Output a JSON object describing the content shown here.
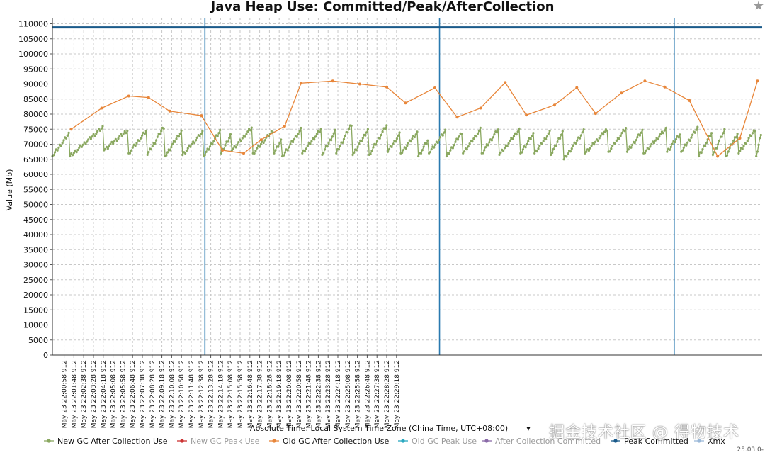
{
  "chart_data": {
    "type": "line",
    "title": "Java Heap Use: Committed/Peak/AfterCollection",
    "xlabel": "Absolute Time: Local System Time Zone (China Time, UTC+08:00)",
    "ylabel": "Value (Mb)",
    "ylim": [
      0,
      112000
    ],
    "y_ticks": [
      0,
      5000,
      10000,
      15000,
      20000,
      25000,
      30000,
      35000,
      40000,
      45000,
      50000,
      55000,
      60000,
      65000,
      70000,
      75000,
      80000,
      85000,
      90000,
      95000,
      100000,
      105000,
      110000
    ],
    "x_range_minutes": [
      0,
      60.5
    ],
    "x_ticks": [
      "May 23 22:00:58.912",
      "May 23 22:01:48.912",
      "May 23 22:02:38.912",
      "May 23 22:03:28.912",
      "May 23 22:04:18.912",
      "May 23 22:05:08.912",
      "May 23 22:05:58.912",
      "May 23 22:06:48.912",
      "May 23 22:07:38.912",
      "May 23 22:08:28.912",
      "May 23 22:09:18.912",
      "May 23 22:10:08.912",
      "May 23 22:10:58.912",
      "May 23 22:11:48.912",
      "May 23 22:12:38.912",
      "May 23 22:13:28.912",
      "May 23 22:14:18.912",
      "May 23 22:15:08.912",
      "May 23 22:15:58.912",
      "May 23 22:16:48.912",
      "May 23 22:17:38.912",
      "May 23 22:18:28.912",
      "May 23 22:19:18.912",
      "May 23 22:20:08.912",
      "May 23 22:20:58.912",
      "May 23 22:21:48.912",
      "May 23 22:22:38.912",
      "May 23 22:23:28.912",
      "May 23 22:24:18.912",
      "May 23 22:25:08.912",
      "May 23 22:25:58.912",
      "May 23 22:26:48.912",
      "May 23 22:27:38.912",
      "May 23 22:28:28.912",
      "May 23 22:29:18.912"
    ],
    "grid": true,
    "legend_position": "bottom",
    "vertical_markers_minutes": [
      13.0,
      33.0,
      53.0
    ],
    "series": [
      {
        "name": "New GC After Collection Use",
        "color": "#8aa860",
        "marker": "dot",
        "cycles": [
          [
            0.0,
            66000,
            74000
          ],
          [
            1.5,
            66000,
            76000
          ],
          [
            4.4,
            68000,
            75000
          ],
          [
            6.5,
            67000,
            75000
          ],
          [
            8.1,
            66500,
            76500
          ],
          [
            9.6,
            66000,
            75000
          ],
          [
            11.1,
            66500,
            74500
          ],
          [
            12.9,
            66000,
            75000
          ],
          [
            14.4,
            67000,
            74000
          ],
          [
            15.3,
            68000,
            76000
          ],
          [
            17.1,
            67000,
            75000
          ],
          [
            18.9,
            67000,
            72000
          ],
          [
            19.6,
            66000,
            75500
          ],
          [
            21.3,
            67000,
            75500
          ],
          [
            23.0,
            66500,
            75000
          ],
          [
            24.2,
            67000,
            77500
          ],
          [
            25.6,
            66500,
            75500
          ],
          [
            27.0,
            66500,
            77000
          ],
          [
            28.6,
            67500,
            74000
          ],
          [
            29.7,
            67000,
            74500
          ],
          [
            31.2,
            66000,
            72000
          ],
          [
            32.1,
            67000,
            75000
          ],
          [
            33.6,
            66000,
            74500
          ],
          [
            35.0,
            67000,
            75500
          ],
          [
            36.6,
            67000,
            75500
          ],
          [
            38.1,
            66500,
            75500
          ],
          [
            39.9,
            67000,
            74000
          ],
          [
            41.1,
            67000,
            74500
          ],
          [
            42.5,
            66500,
            75000
          ],
          [
            43.6,
            65000,
            75000
          ],
          [
            45.4,
            67000,
            75500
          ],
          [
            47.4,
            67500,
            76000
          ],
          [
            49.0,
            67500,
            75000
          ],
          [
            50.4,
            67000,
            75500
          ],
          [
            52.4,
            67500,
            74000
          ],
          [
            53.6,
            67500,
            76000
          ],
          [
            55.1,
            66000,
            74500
          ],
          [
            56.3,
            66500,
            75500
          ],
          [
            57.4,
            66000,
            74500
          ],
          [
            58.5,
            67000,
            75500
          ],
          [
            60.0,
            66000,
            75500
          ]
        ]
      },
      {
        "name": "New GC Peak Use",
        "color": "#cc3333",
        "marker": "dot",
        "points": []
      },
      {
        "name": "Old GC After Collection Use",
        "color": "#e8863a",
        "marker": "dot",
        "points": [
          [
            1.6,
            75000
          ],
          [
            4.2,
            82000
          ],
          [
            6.5,
            86000
          ],
          [
            8.2,
            85500
          ],
          [
            10.0,
            81000
          ],
          [
            12.7,
            79500
          ],
          [
            14.5,
            68000
          ],
          [
            16.3,
            67000
          ],
          [
            17.8,
            71500
          ],
          [
            19.8,
            76000
          ],
          [
            21.2,
            90300
          ],
          [
            23.9,
            91000
          ],
          [
            26.2,
            90000
          ],
          [
            28.5,
            89000
          ],
          [
            30.1,
            83700
          ],
          [
            32.6,
            88700
          ],
          [
            34.5,
            79000
          ],
          [
            36.5,
            82000
          ],
          [
            38.6,
            90500
          ],
          [
            40.4,
            79700
          ],
          [
            42.8,
            83000
          ],
          [
            44.7,
            88800
          ],
          [
            46.3,
            80200
          ],
          [
            48.5,
            87000
          ],
          [
            50.5,
            91000
          ],
          [
            52.2,
            89000
          ],
          [
            54.3,
            84500
          ],
          [
            56.7,
            66000
          ],
          [
            58.6,
            72000
          ],
          [
            60.1,
            91000
          ]
        ]
      },
      {
        "name": "Old GC Peak Use",
        "color": "#2aa8c0",
        "marker": "dot",
        "points": []
      },
      {
        "name": "After Collection Committed",
        "color": "#8a6aa8",
        "marker": "dot",
        "points": []
      },
      {
        "name": "Peak Committed",
        "color": "#1a5a8a",
        "marker": "dot",
        "constant_y": 108800
      },
      {
        "name": "Xmx",
        "color": "#9ab8d8",
        "marker": "dot",
        "points": []
      }
    ]
  },
  "legend": {
    "items": [
      {
        "label": "New GC After Collection Use",
        "color": "#8aa860",
        "text_color": "#111111"
      },
      {
        "label": "New GC Peak Use",
        "color": "#cc3333",
        "text_color": "#9a9a9a"
      },
      {
        "label": "Old GC After Collection Use",
        "color": "#e8863a",
        "text_color": "#111111"
      },
      {
        "label": "Old GC Peak Use",
        "color": "#2aa8c0",
        "text_color": "#9a9a9a"
      },
      {
        "label": "After Collection Committed",
        "color": "#8a6aa8",
        "text_color": "#9a9a9a"
      },
      {
        "label": "Peak Committed",
        "color": "#1a5a8a",
        "text_color": "#111111"
      },
      {
        "label": "Xmx",
        "color": "#9ab8d8",
        "text_color": "#111111"
      }
    ]
  },
  "ui": {
    "star_icon": "star-icon",
    "dropdown_icon": "chevron-down-icon",
    "dropdown_glyph": "▾",
    "watermark": "掘金技术社区 @ 得物技术",
    "version": "25.03.0-"
  }
}
